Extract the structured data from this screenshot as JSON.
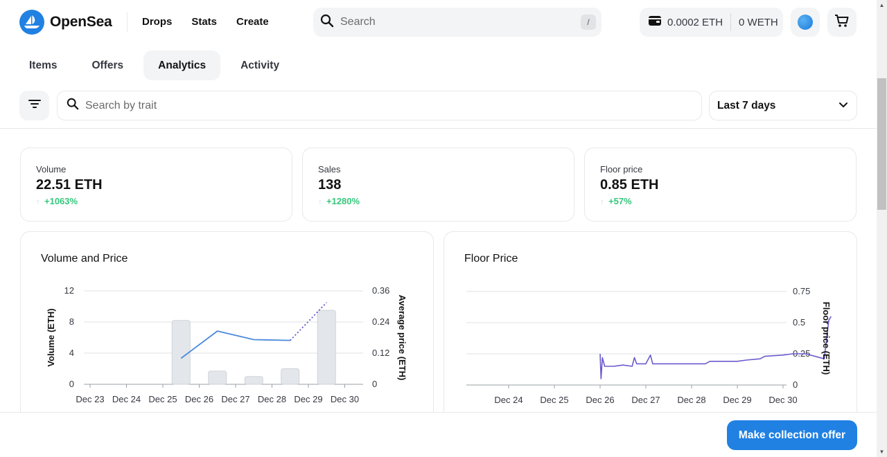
{
  "header": {
    "brand": "OpenSea",
    "nav": [
      "Drops",
      "Stats",
      "Create"
    ],
    "search_placeholder": "Search",
    "search_shortcut": "/",
    "wallet_eth": "0.0002 ETH",
    "wallet_weth": "0 WETH"
  },
  "tabs": [
    "Items",
    "Offers",
    "Analytics",
    "Activity"
  ],
  "active_tab": "Analytics",
  "filters": {
    "trait_placeholder": "Search by trait",
    "range": "Last 7 days"
  },
  "stats": [
    {
      "label": "Volume",
      "value": "22.51 ETH",
      "change": "+1063%"
    },
    {
      "label": "Sales",
      "value": "138",
      "change": "+1280%"
    },
    {
      "label": "Floor price",
      "value": "0.85 ETH",
      "change": "+57%"
    }
  ],
  "colors": {
    "accent": "#2081e2",
    "positive": "#34c77b",
    "line": "#4a89dc",
    "floor_line": "#6a5acd"
  },
  "footer": {
    "offer_button": "Make collection offer"
  },
  "chart_data": [
    {
      "type": "bar",
      "title": "Volume and Price",
      "categories": [
        "Dec 23",
        "Dec 24",
        "Dec 25",
        "Dec 26",
        "Dec 27",
        "Dec 28",
        "Dec 29",
        "Dec 30"
      ],
      "ylabel": "Volume (ETH)",
      "ylim": [
        0,
        12
      ],
      "yticks": [
        "0",
        "4",
        "8",
        "12"
      ],
      "y2label": "Average price (ETH)",
      "y2lim": [
        0,
        0.36
      ],
      "y2ticks": [
        "0",
        "0.12",
        "0.24",
        "0.36"
      ],
      "bars": [
        {
          "x": 2.5,
          "value": 8.2
        },
        {
          "x": 3.5,
          "value": 1.7
        },
        {
          "x": 4.5,
          "value": 1.0
        },
        {
          "x": 5.5,
          "value": 2.0
        },
        {
          "x": 6.5,
          "value": 9.5
        }
      ],
      "price_line": [
        {
          "x": 2.5,
          "value": 0.1
        },
        {
          "x": 3.5,
          "value": 0.205
        },
        {
          "x": 4.5,
          "value": 0.172
        },
        {
          "x": 5.5,
          "value": 0.169
        }
      ],
      "price_projection": [
        {
          "x": 5.5,
          "value": 0.169
        },
        {
          "x": 6.5,
          "value": 0.315
        }
      ],
      "grid": true
    },
    {
      "type": "line",
      "title": "Floor Price",
      "categories": [
        "Dec 24",
        "Dec 25",
        "Dec 26",
        "Dec 27",
        "Dec 28",
        "Dec 29",
        "Dec 30"
      ],
      "ylabel": "Floor price (ETH)",
      "ylim": [
        0,
        0.75
      ],
      "yticks": [
        "0",
        "0.25",
        "0.5",
        "0.75"
      ],
      "points": [
        [
          2.0,
          0.25
        ],
        [
          2.02,
          0.05
        ],
        [
          2.05,
          0.22
        ],
        [
          2.1,
          0.15
        ],
        [
          2.3,
          0.15
        ],
        [
          2.5,
          0.16
        ],
        [
          2.7,
          0.15
        ],
        [
          2.75,
          0.22
        ],
        [
          2.8,
          0.17
        ],
        [
          3.0,
          0.17
        ],
        [
          3.1,
          0.24
        ],
        [
          3.15,
          0.17
        ],
        [
          3.5,
          0.17
        ],
        [
          3.8,
          0.17
        ],
        [
          4.3,
          0.17
        ],
        [
          4.4,
          0.19
        ],
        [
          4.5,
          0.19
        ],
        [
          4.8,
          0.19
        ],
        [
          5.0,
          0.19
        ],
        [
          5.2,
          0.2
        ],
        [
          5.5,
          0.21
        ],
        [
          5.6,
          0.23
        ],
        [
          6.0,
          0.24
        ],
        [
          6.2,
          0.25
        ],
        [
          6.5,
          0.25
        ],
        [
          6.9,
          0.21
        ],
        [
          7.0,
          0.52
        ],
        [
          7.05,
          0.55
        ]
      ],
      "grid": true
    }
  ]
}
